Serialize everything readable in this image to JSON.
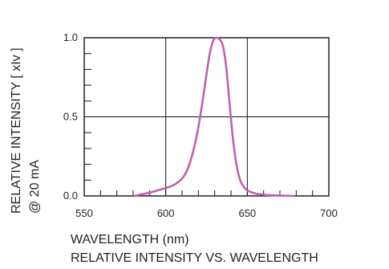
{
  "chart_data": {
    "type": "line",
    "title": "RELATIVE INTENSITY VS. WAVELENGTH",
    "xlabel": "WAVELENGTH (nm)",
    "ylabel": "RELATIVE INTENSITY [ xIv ]",
    "ylabel_sub": "@ 20 mA",
    "xlim": [
      550,
      700
    ],
    "ylim": [
      0,
      1.0
    ],
    "x_ticks": [
      "550",
      "600",
      "650",
      "700"
    ],
    "y_ticks": [
      "0.0",
      "0.5",
      "1.0"
    ],
    "grid": true,
    "series_color": "#c060b0",
    "series": [
      {
        "x": [
          581,
          585,
          590,
          595,
          600,
          605,
          610,
          613,
          616,
          619,
          622,
          625,
          627,
          629,
          631,
          633,
          635,
          637,
          639,
          641,
          643,
          645,
          647,
          650,
          655,
          660,
          665,
          670,
          675,
          678
        ],
        "values": [
          0.0,
          0.01,
          0.02,
          0.035,
          0.05,
          0.07,
          0.11,
          0.16,
          0.25,
          0.38,
          0.56,
          0.77,
          0.9,
          0.98,
          1.0,
          0.99,
          0.95,
          0.82,
          0.6,
          0.38,
          0.22,
          0.12,
          0.07,
          0.035,
          0.015,
          0.008,
          0.004,
          0.002,
          0.001,
          0.0
        ]
      }
    ]
  }
}
